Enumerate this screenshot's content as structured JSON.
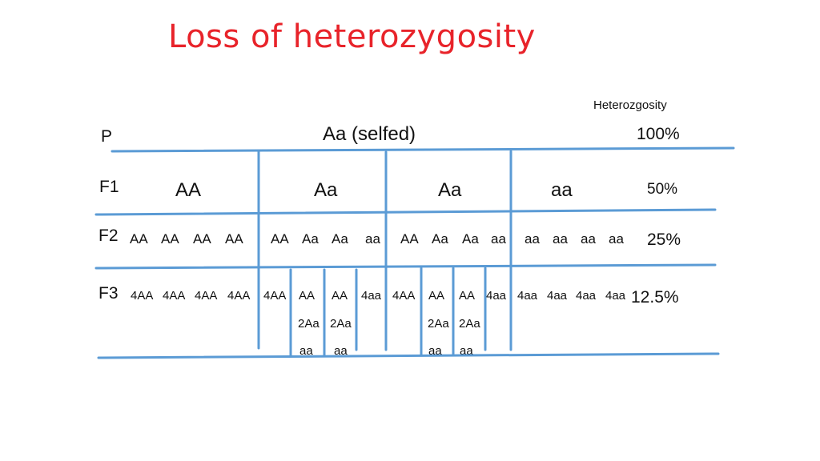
{
  "title": "Loss of heterozygosity",
  "heterozygosity_label": "Heterozgosity",
  "rows": {
    "p": {
      "gen": "P",
      "genotype": "Aa (selfed)",
      "pct": "100%"
    },
    "f1": {
      "gen": "F1",
      "genotypes": [
        "AA",
        "Aa",
        "Aa",
        "aa"
      ],
      "pct": "50%"
    },
    "f2": {
      "gen": "F2",
      "genotypes": [
        "AA",
        "AA",
        "AA",
        "AA",
        "AA",
        "Aa",
        "Aa",
        "aa",
        "AA",
        "Aa",
        "Aa",
        "aa",
        "aa",
        "aa",
        "aa",
        "aa"
      ],
      "pct": "25%"
    },
    "f3": {
      "gen": "F3",
      "genotypes": [
        "4AA",
        "4AA",
        "4AA",
        "4AA",
        "4AA",
        "AA",
        "AA",
        "4aa",
        "4AA",
        "AA",
        "AA",
        "4aa",
        "4aa",
        "4aa",
        "4aa",
        "4aa"
      ],
      "sub1": [
        "2Aa",
        "2Aa",
        "2Aa",
        "2Aa"
      ],
      "sub2": [
        "aa",
        "aa",
        "aa",
        "aa"
      ],
      "pct": "12.5%"
    }
  },
  "colors": {
    "title": "#e8232a",
    "lines": "#5b9bd5"
  }
}
